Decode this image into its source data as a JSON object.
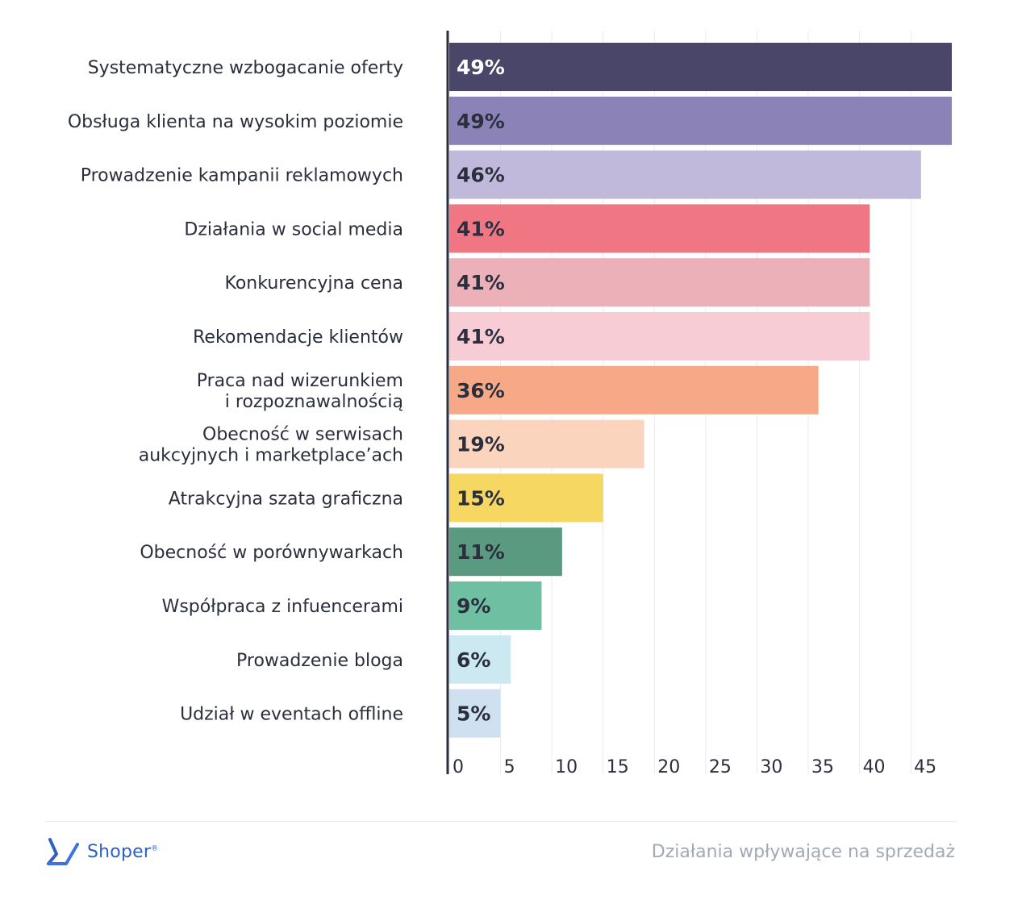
{
  "chart_data": {
    "type": "bar",
    "orientation": "horizontal",
    "categories": [
      "Systematyczne wzbogacanie oferty",
      "Obsługa klienta na wysokim poziomie",
      "Prowadzenie kampanii reklamowych",
      "Działania w social media",
      "Konkurencyjna cena",
      "Rekomendacje klientów",
      "Praca nad wizerunkiem\ni rozpoznawalnością",
      "Obecność w serwisach\naukcyjnych i marketplace’ach",
      "Atrakcyjna szata graficzna",
      "Obecność w porównywarkach",
      "Współpraca z infuencerami",
      "Prowadzenie bloga",
      "Udział w eventach offline"
    ],
    "values": [
      49,
      49,
      46,
      41,
      41,
      41,
      36,
      19,
      15,
      11,
      9,
      6,
      5
    ],
    "value_labels": [
      "49%",
      "49%",
      "46%",
      "41%",
      "41%",
      "41%",
      "36%",
      "19%",
      "15%",
      "11%",
      "9%",
      "6%",
      "5%"
    ],
    "bar_colors": [
      "#4a4669",
      "#8b83b8",
      "#c1b9dc",
      "#f07683",
      "#ebb0b8",
      "#f8ccd5",
      "#f7a987",
      "#fbd4bd",
      "#f6d762",
      "#5a9a80",
      "#6fbfa2",
      "#cce9f1",
      "#cfe1f1"
    ],
    "value_label_colors": [
      "#ffffff",
      "#2b2f3d",
      "#2b2f3d",
      "#2b2f3d",
      "#2b2f3d",
      "#2b2f3d",
      "#2b2f3d",
      "#2b2f3d",
      "#2b2f3d",
      "#2b2f3d",
      "#2b2f3d",
      "#2b2f3d",
      "#2b2f3d"
    ],
    "x_ticks": [
      0,
      5,
      10,
      15,
      20,
      25,
      30,
      35,
      40,
      45
    ],
    "xlim": [
      0,
      49
    ],
    "grid": "vertical",
    "title": "",
    "xlabel": "",
    "ylabel": ""
  },
  "footer": {
    "brand": "Shoper",
    "brand_mark": "®",
    "caption": "Działania wpływające na sprzedaż"
  },
  "colors": {
    "axis": "#2b2f3d",
    "grid": "#e8ebef",
    "text": "#2b2f3d",
    "brand_blue": "#2d5fc4"
  },
  "icons": {
    "logo": "shoper-logo-icon"
  }
}
